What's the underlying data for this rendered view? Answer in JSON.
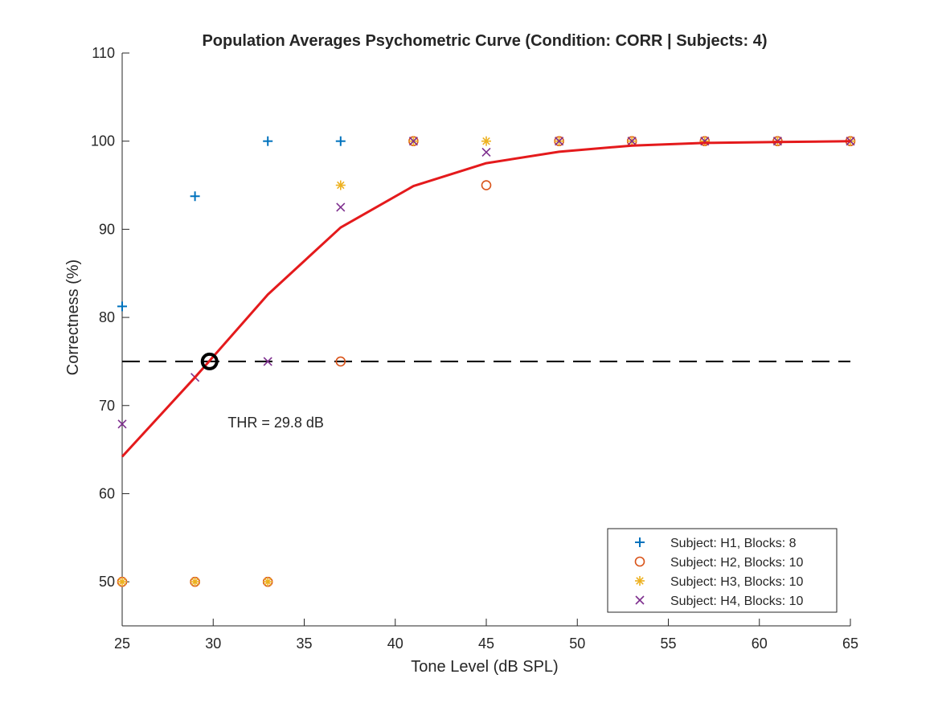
{
  "chart_data": {
    "type": "scatter",
    "title": "Population Averages Psychometric Curve (Condition: CORR | Subjects: 4)",
    "xlabel": "Tone Level (dB SPL)",
    "ylabel": "Correctness (%)",
    "xlim": [
      25,
      65
    ],
    "ylim": [
      45,
      110
    ],
    "xticks": [
      25,
      30,
      35,
      40,
      45,
      50,
      55,
      60,
      65
    ],
    "yticks": [
      50,
      60,
      70,
      80,
      90,
      100,
      110
    ],
    "grid": false,
    "legend_position": "bottom-right",
    "series": [
      {
        "name": "Subject: H1, Blocks: 8",
        "marker": "plus",
        "color": "#0072BD",
        "x": [
          25,
          29,
          33,
          37
        ],
        "y": [
          81.25,
          93.75,
          100,
          100
        ]
      },
      {
        "name": "Subject: H2, Blocks: 10",
        "marker": "circle",
        "color": "#D95319",
        "x": [
          25,
          29,
          33,
          37,
          41,
          45,
          49,
          53,
          57,
          61,
          65
        ],
        "y": [
          50,
          50,
          50,
          75,
          100,
          95,
          100,
          100,
          100,
          100,
          100
        ]
      },
      {
        "name": "Subject: H3, Blocks: 10",
        "marker": "asterisk",
        "color": "#EDB120",
        "x": [
          25,
          29,
          33,
          37,
          41,
          45,
          49,
          53,
          57,
          61,
          65
        ],
        "y": [
          50,
          50,
          50,
          95,
          100,
          100,
          100,
          100,
          100,
          100,
          100
        ]
      },
      {
        "name": "Subject: H4, Blocks: 10",
        "marker": "x",
        "color": "#7E2F8E",
        "x": [
          25,
          29,
          33,
          37,
          41,
          45,
          49,
          53,
          57,
          61,
          65
        ],
        "y": [
          67.9,
          73.2,
          75,
          92.5,
          100,
          98.75,
          100,
          100,
          100,
          100,
          100
        ]
      }
    ],
    "fit_curve": {
      "color": "#E41A1C",
      "x": [
        25,
        29,
        33,
        37,
        41,
        45,
        49,
        53,
        57,
        61,
        65
      ],
      "y": [
        64.2,
        73.2,
        82.6,
        90.2,
        94.9,
        97.5,
        98.8,
        99.5,
        99.8,
        99.9,
        100
      ]
    },
    "threshold_line": {
      "y": 75,
      "style": "dashed",
      "color": "#000000"
    },
    "threshold_point": {
      "x": 29.8,
      "y": 75
    },
    "annotation": {
      "text": "THR = 29.8 dB",
      "x": 30.8,
      "y": 67.5
    }
  }
}
